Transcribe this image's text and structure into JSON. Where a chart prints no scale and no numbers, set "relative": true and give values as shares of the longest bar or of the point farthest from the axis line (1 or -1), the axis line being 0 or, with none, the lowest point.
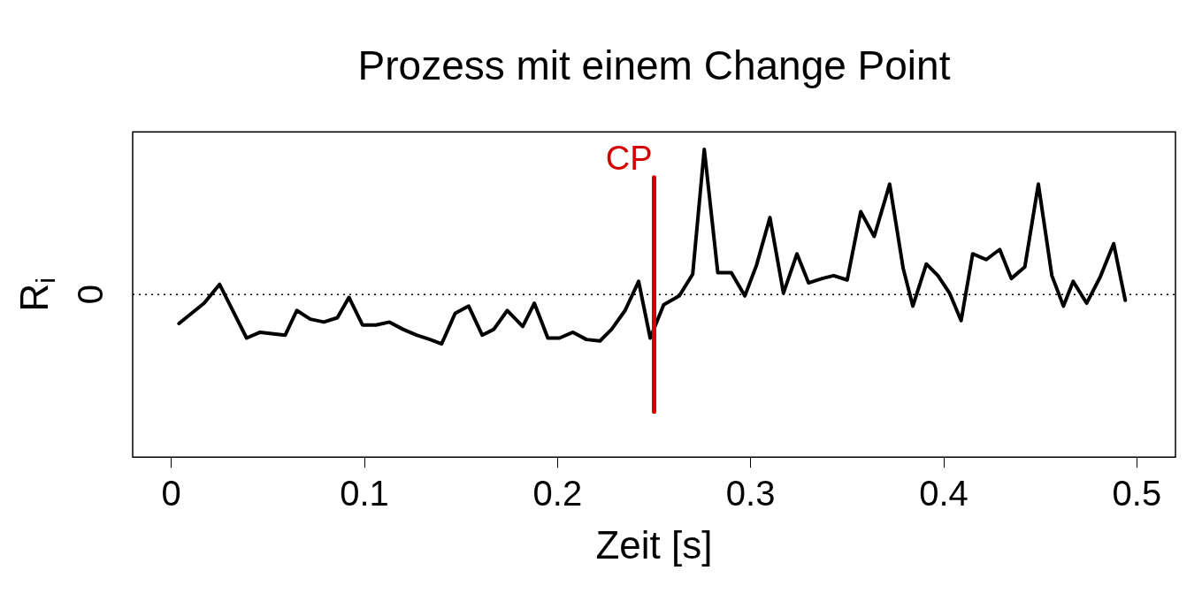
{
  "chart_data": {
    "type": "line",
    "title": "Prozess mit einem Change Point",
    "xlabel": "Zeit [s]",
    "ylabel": "R$_{i}$",
    "relative": true,
    "xlim": [
      -0.02,
      0.52
    ],
    "xticks": [
      0,
      0.1,
      0.2,
      0.3,
      0.4,
      0.5
    ],
    "grid": false,
    "legend": false,
    "marker": "none",
    "line_style": "solid",
    "x": [
      0.004,
      0.017,
      0.025,
      0.039,
      0.046,
      0.052,
      0.059,
      0.065,
      0.072,
      0.079,
      0.086,
      0.092,
      0.099,
      0.106,
      0.113,
      0.12,
      0.127,
      0.134,
      0.14,
      0.147,
      0.154,
      0.161,
      0.167,
      0.174,
      0.182,
      0.188,
      0.195,
      0.201,
      0.208,
      0.215,
      0.222,
      0.228,
      0.235,
      0.242,
      0.248,
      0.255,
      0.263,
      0.27,
      0.276,
      0.283,
      0.29,
      0.297,
      0.303,
      0.31,
      0.317,
      0.324,
      0.33,
      0.337,
      0.343,
      0.35,
      0.357,
      0.364,
      0.372,
      0.379,
      0.384,
      0.391,
      0.397,
      0.403,
      0.409,
      0.415,
      0.422,
      0.429,
      0.435,
      0.442,
      0.449,
      0.456,
      0.462,
      0.467,
      0.474,
      0.481,
      0.488,
      0.494
    ],
    "series": [
      {
        "color": "#000000",
        "values": [
          -0.2,
          -0.06,
          0.07,
          -0.3,
          -0.26,
          -0.27,
          -0.28,
          -0.11,
          -0.17,
          -0.19,
          -0.16,
          -0.02,
          -0.21,
          -0.21,
          -0.19,
          -0.24,
          -0.28,
          -0.31,
          -0.34,
          -0.13,
          -0.08,
          -0.28,
          -0.24,
          -0.11,
          -0.22,
          -0.06,
          -0.3,
          -0.3,
          -0.26,
          -0.31,
          -0.32,
          -0.24,
          -0.11,
          0.09,
          -0.3,
          -0.07,
          -0.01,
          0.14,
          1,
          0.15,
          0.15,
          -0.01,
          0.2,
          0.53,
          0.01,
          0.28,
          0.08,
          0.11,
          0.13,
          0.1,
          0.57,
          0.4,
          0.76,
          0.18,
          -0.08,
          0.21,
          0.13,
          0.01,
          -0.18,
          0.28,
          0.24,
          0.31,
          0.11,
          0.19,
          0.76,
          0.13,
          -0.08,
          0.09,
          -0.06,
          0.12,
          0.35,
          -0.04
        ]
      }
    ],
    "ref_lines": [
      {
        "axis": "y",
        "value": 0,
        "label": "0",
        "color": "#000000",
        "line_style": "dotted"
      },
      {
        "axis": "x",
        "value": 0.25,
        "label": "CP",
        "color": "#d40000",
        "line_style": "solid"
      }
    ]
  }
}
